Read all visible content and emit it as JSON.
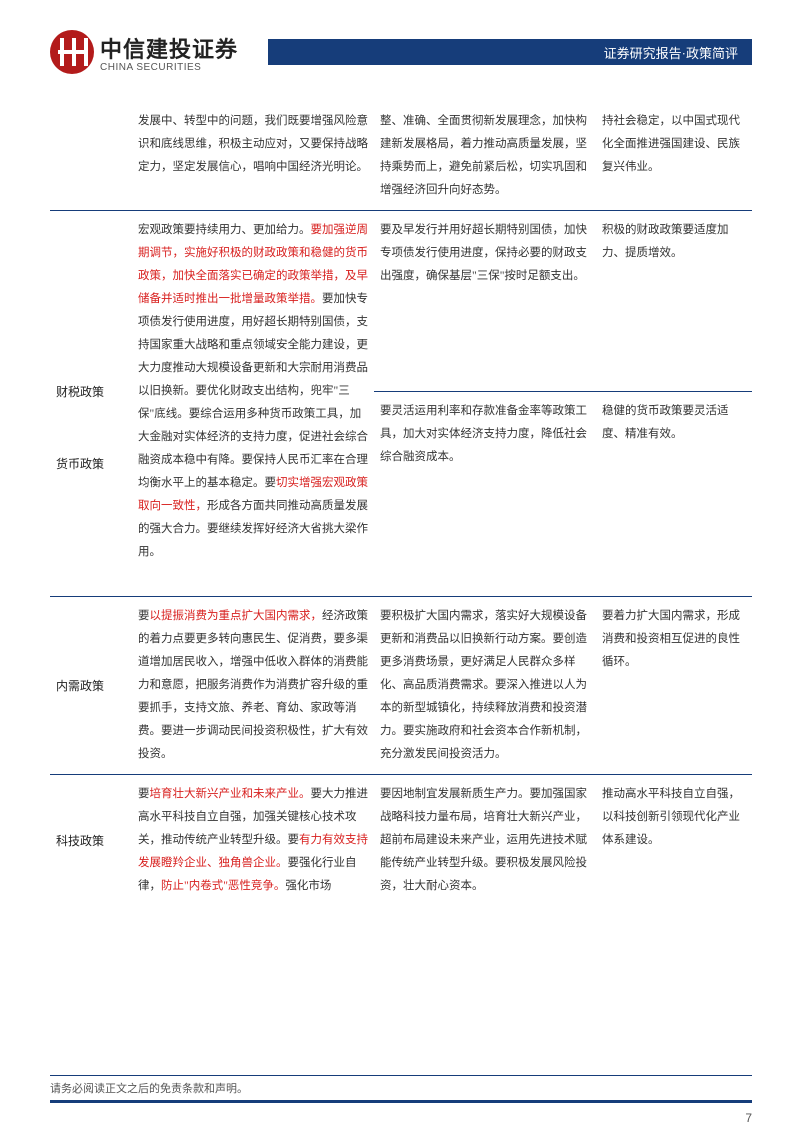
{
  "header": {
    "logo_cn": "中信建投证券",
    "logo_en": "CHINA SECURITIES",
    "bar_text": "证券研究报告·政策简评"
  },
  "colors": {
    "brand_blue": "#163d7a",
    "brand_red": "#b31b1b",
    "highlight_red": "#d8201f",
    "text": "#333333",
    "background": "#ffffff"
  },
  "typography": {
    "body_font": "SimSun",
    "body_size_pt": 9,
    "line_height": 2.0,
    "label_size_pt": 9,
    "logo_cn_size_pt": 16,
    "logo_en_size_pt": 7
  },
  "table": {
    "row0": {
      "colA": "发展中、转型中的问题，我们既要增强风险意识和底线思维，积极主动应对，又要保持战略定力，坚定发展信心，唱响中国经济光明论。",
      "colB": "整、准确、全面贯彻新发展理念，加快构建新发展格局，着力推动高质量发展，坚持乘势而上，避免前紧后松，切实巩固和增强经济回升向好态势。",
      "colC": "持社会稳定，以中国式现代化全面推进强国建设、民族复兴伟业。"
    },
    "row1": {
      "label": "财税政策",
      "colA_p1": "宏观政策要持续用力、更加给力。",
      "colA_red1": "要加强逆周期调节，实施好积极的财政政策和稳健的货币政策，加快全面落实已确定的政策举措，及早储备并适时推出一批增量政策举措。",
      "colA_p2": "要加快专项债发行使用进度，用好超长期特别国债，支持国家重大战略和重点领域安全能力建设，更大力度推动大规模设备更新和大宗耐用消费品以旧换新。要优化财政支出结构，兜牢\"三保\"底线。要综合运用多种货币政策工具，加大金融对实体经济的支持力度，促进社会综合融资成本稳中有降。要保持人民币汇率在合理均衡水平上的基本稳定。要",
      "colA_red2": "切实增强宏观政策取向一致性，",
      "colA_p3": "形成各方面共同推动高质量发展的强大合力。要继续发挥好经济大省挑大梁作用。",
      "colB": "要及早发行并用好超长期特别国债，加快专项债发行使用进度，保持必要的财政支出强度，确保基层\"三保\"按时足额支出。",
      "colC": "积极的财政政策要适度加力、提质增效。"
    },
    "row2": {
      "label": "货币政策",
      "colB": "要灵活运用利率和存款准备金率等政策工具，加大对实体经济支持力度，降低社会综合融资成本。",
      "colC": "稳健的货币政策要灵活适度、精准有效。"
    },
    "row3": {
      "label": "内需政策",
      "colA_p1": "要",
      "colA_red1": "以提振消费为重点扩大国内需求，",
      "colA_p2": "经济政策的着力点要更多转向惠民生、促消费，要多渠道增加居民收入，增强中低收入群体的消费能力和意愿，把服务消费作为消费扩容升级的重要抓手，支持文旅、养老、育幼、家政等消费。要进一步调动民间投资积极性，扩大有效投资。",
      "colB": "要积极扩大国内需求，落实好大规模设备更新和消费品以旧换新行动方案。要创造更多消费场景，更好满足人民群众多样化、高品质消费需求。要深入推进以人为本的新型城镇化，持续释放消费和投资潜力。要实施政府和社会资本合作新机制，充分激发民间投资活力。",
      "colC": "要着力扩大国内需求，形成消费和投资相互促进的良性循环。"
    },
    "row4": {
      "label": "科技政策",
      "colA_p1": "要",
      "colA_red1": "培育壮大新兴产业和未来产业。",
      "colA_p2": "要大力推进高水平科技自立自强，加强关键核心技术攻关，推动传统产业转型升级。要",
      "colA_red2": "有力有效支持发展瞪羚企业、独角兽企业。",
      "colA_p3": "要强化行业自律，",
      "colA_red3": "防止\"内卷式\"恶性竞争。",
      "colA_p4": "强化市场",
      "colB": "要因地制宜发展新质生产力。要加强国家战略科技力量布局，培育壮大新兴产业，超前布局建设未来产业，运用先进技术赋能传统产业转型升级。要积极发展风险投资，壮大耐心资本。",
      "colC": "推动高水平科技自立自强，以科技创新引领现代化产业体系建设。"
    }
  },
  "footer": {
    "disclaimer": "请务必阅读正文之后的免责条款和声明。",
    "page_num": "7"
  }
}
